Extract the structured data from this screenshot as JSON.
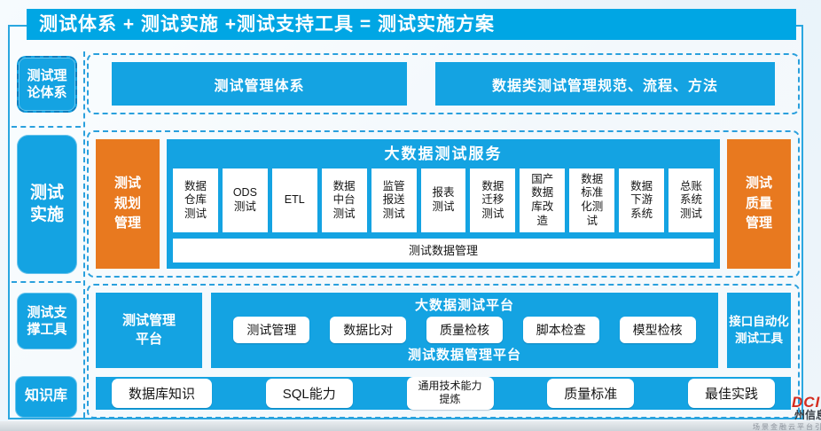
{
  "header": {
    "title": "测试体系 + 测试实施 +测试支持工具 = 测试实施方案"
  },
  "left_labels": [
    {
      "label": "测试理论体系"
    },
    {
      "label": "测试实施"
    },
    {
      "label": "测试支撑工具"
    },
    {
      "label": "知识库"
    }
  ],
  "theory": {
    "items": [
      "测试管理体系",
      "数据类测试管理规范、流程、方法"
    ]
  },
  "implementation": {
    "left_box": "测试规划管理",
    "service_title": "大数据测试服务",
    "services": [
      "数据仓库测试",
      "ODS测试",
      "ETL",
      "数据中台测试",
      "监管报送测试",
      "报表测试",
      "数据迁移测试",
      "国产数据库改造",
      "数据标准化测试",
      "数据下游系统",
      "总账系统测试"
    ],
    "bottom_bar": "测试数据管理",
    "right_box": "测试质量管理"
  },
  "tools": {
    "left_box": "测试管理平台",
    "platform_title": "大数据测试平台",
    "pills": [
      "测试管理",
      "数据比对",
      "质量检核",
      "脚本检查",
      "模型检核"
    ],
    "platform_bottom": "测试数据管理平台",
    "right_box": "接口自动化测试工具"
  },
  "knowledge": {
    "items": [
      "数据库知识",
      "SQL能力",
      "通用技术能力提炼",
      "质量标准",
      "最佳实践"
    ]
  },
  "logo": {
    "brand": "DCITS",
    "brand_cn": "州信息",
    "tagline": "场景金融云平台引"
  },
  "colors": {
    "header_blue": "#00a6e4",
    "box_blue": "#14a3e2",
    "orange": "#e8791f",
    "dashed_border": "#2aa0dd",
    "logo_red": "#d42b1e"
  }
}
